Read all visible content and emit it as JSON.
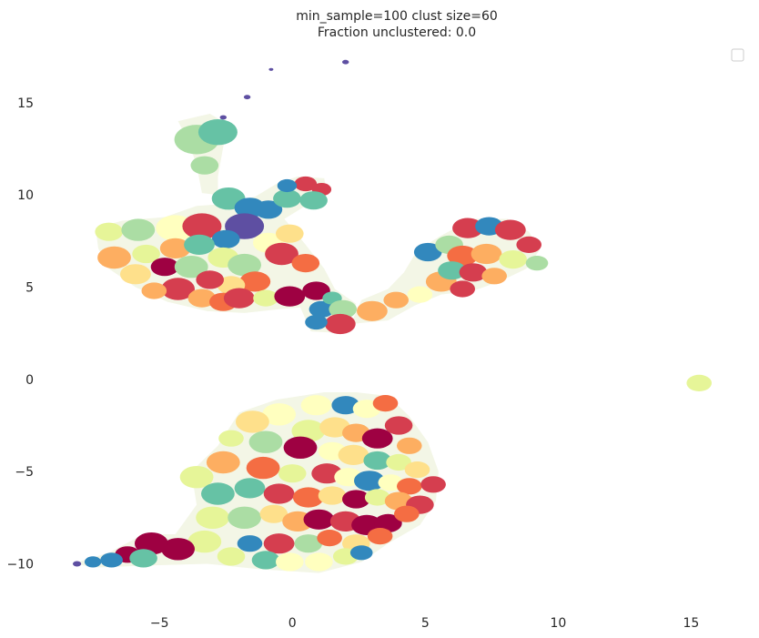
{
  "chart_data": {
    "type": "scatter",
    "title_lines": [
      "min_sample=100 clust size=60",
      "Fraction unclustered: 0.0"
    ],
    "xlabel": "",
    "ylabel": "",
    "xlim": [
      -8.6,
      16.8
    ],
    "ylim": [
      -12.0,
      18.0
    ],
    "x_ticks": [
      -5,
      0,
      5,
      10,
      15
    ],
    "x_tick_labels": [
      "−5",
      "0",
      "5",
      "10",
      "15"
    ],
    "y_ticks": [
      -10,
      -5,
      0,
      5,
      10,
      15
    ],
    "y_tick_labels": [
      "−10",
      "−5",
      "0",
      "5",
      "10",
      "15"
    ],
    "grid": false,
    "legend": "top-right, empty",
    "colors": [
      "#9e0142",
      "#d53e4f",
      "#f46d43",
      "#fdae61",
      "#fee08b",
      "#ffffbf",
      "#e6f598",
      "#abdda4",
      "#66c2a5",
      "#3288bd",
      "#5e4fa2"
    ],
    "clusters": [
      {
        "x": 2.0,
        "y": 17.2,
        "r": 0.12,
        "c": 10
      },
      {
        "x": -0.8,
        "y": 16.8,
        "r": 0.08,
        "c": 10
      },
      {
        "x": -1.7,
        "y": 15.3,
        "r": 0.12,
        "c": 10
      },
      {
        "x": -2.6,
        "y": 14.2,
        "r": 0.12,
        "c": 10
      },
      {
        "x": -3.6,
        "y": 13.0,
        "r": 0.8,
        "c": 7
      },
      {
        "x": -2.8,
        "y": 13.4,
        "r": 0.7,
        "c": 8
      },
      {
        "x": -3.3,
        "y": 11.6,
        "r": 0.5,
        "c": 7
      },
      {
        "x": -2.4,
        "y": 9.8,
        "r": 0.6,
        "c": 8
      },
      {
        "x": -1.6,
        "y": 9.3,
        "r": 0.55,
        "c": 9
      },
      {
        "x": -1.8,
        "y": 8.3,
        "r": 0.7,
        "c": 10
      },
      {
        "x": -0.9,
        "y": 9.2,
        "r": 0.5,
        "c": 9
      },
      {
        "x": -0.2,
        "y": 9.8,
        "r": 0.5,
        "c": 8
      },
      {
        "x": 0.5,
        "y": 10.6,
        "r": 0.4,
        "c": 1
      },
      {
        "x": 1.1,
        "y": 10.3,
        "r": 0.35,
        "c": 1
      },
      {
        "x": 0.8,
        "y": 9.7,
        "r": 0.5,
        "c": 8
      },
      {
        "x": -0.2,
        "y": 10.5,
        "r": 0.35,
        "c": 9
      },
      {
        "x": -6.9,
        "y": 8.0,
        "r": 0.5,
        "c": 6
      },
      {
        "x": -5.8,
        "y": 8.1,
        "r": 0.6,
        "c": 7
      },
      {
        "x": -4.4,
        "y": 8.2,
        "r": 0.7,
        "c": 5
      },
      {
        "x": -3.4,
        "y": 8.3,
        "r": 0.7,
        "c": 1
      },
      {
        "x": -2.5,
        "y": 7.6,
        "r": 0.5,
        "c": 9
      },
      {
        "x": -6.7,
        "y": 6.6,
        "r": 0.6,
        "c": 3
      },
      {
        "x": -5.9,
        "y": 5.7,
        "r": 0.55,
        "c": 4
      },
      {
        "x": -5.5,
        "y": 6.8,
        "r": 0.5,
        "c": 6
      },
      {
        "x": -4.8,
        "y": 6.1,
        "r": 0.5,
        "c": 0
      },
      {
        "x": -4.4,
        "y": 7.1,
        "r": 0.55,
        "c": 3
      },
      {
        "x": -3.8,
        "y": 6.1,
        "r": 0.6,
        "c": 7
      },
      {
        "x": -3.5,
        "y": 7.3,
        "r": 0.55,
        "c": 8
      },
      {
        "x": -2.6,
        "y": 6.6,
        "r": 0.55,
        "c": 6
      },
      {
        "x": -1.8,
        "y": 6.2,
        "r": 0.6,
        "c": 7
      },
      {
        "x": -0.9,
        "y": 7.4,
        "r": 0.55,
        "c": 5
      },
      {
        "x": -0.4,
        "y": 6.8,
        "r": 0.6,
        "c": 1
      },
      {
        "x": -0.1,
        "y": 7.9,
        "r": 0.5,
        "c": 4
      },
      {
        "x": 0.5,
        "y": 6.3,
        "r": 0.5,
        "c": 2
      },
      {
        "x": -1.4,
        "y": 5.3,
        "r": 0.55,
        "c": 2
      },
      {
        "x": -2.3,
        "y": 5.1,
        "r": 0.5,
        "c": 4
      },
      {
        "x": -3.1,
        "y": 5.4,
        "r": 0.5,
        "c": 1
      },
      {
        "x": -4.3,
        "y": 4.9,
        "r": 0.6,
        "c": 1
      },
      {
        "x": -5.2,
        "y": 4.8,
        "r": 0.45,
        "c": 3
      },
      {
        "x": -3.4,
        "y": 4.4,
        "r": 0.5,
        "c": 3
      },
      {
        "x": -2.6,
        "y": 4.2,
        "r": 0.5,
        "c": 2
      },
      {
        "x": -2.0,
        "y": 4.4,
        "r": 0.55,
        "c": 1
      },
      {
        "x": -1.0,
        "y": 4.4,
        "r": 0.45,
        "c": 6
      },
      {
        "x": -0.1,
        "y": 4.5,
        "r": 0.55,
        "c": 0
      },
      {
        "x": 0.9,
        "y": 4.8,
        "r": 0.5,
        "c": 0
      },
      {
        "x": 1.1,
        "y": 3.8,
        "r": 0.45,
        "c": 9
      },
      {
        "x": 1.5,
        "y": 4.4,
        "r": 0.35,
        "c": 8
      },
      {
        "x": 1.9,
        "y": 3.8,
        "r": 0.5,
        "c": 7
      },
      {
        "x": 1.8,
        "y": 3.0,
        "r": 0.55,
        "c": 1
      },
      {
        "x": 0.9,
        "y": 3.1,
        "r": 0.4,
        "c": 9
      },
      {
        "x": 3.0,
        "y": 3.7,
        "r": 0.55,
        "c": 3
      },
      {
        "x": 3.9,
        "y": 4.3,
        "r": 0.45,
        "c": 3
      },
      {
        "x": 4.8,
        "y": 4.6,
        "r": 0.45,
        "c": 5
      },
      {
        "x": 5.6,
        "y": 5.3,
        "r": 0.55,
        "c": 3
      },
      {
        "x": 5.1,
        "y": 6.9,
        "r": 0.5,
        "c": 9
      },
      {
        "x": 5.9,
        "y": 7.3,
        "r": 0.5,
        "c": 7
      },
      {
        "x": 6.6,
        "y": 8.2,
        "r": 0.55,
        "c": 1
      },
      {
        "x": 7.4,
        "y": 8.3,
        "r": 0.5,
        "c": 9
      },
      {
        "x": 8.2,
        "y": 8.1,
        "r": 0.55,
        "c": 1
      },
      {
        "x": 6.4,
        "y": 6.7,
        "r": 0.55,
        "c": 2
      },
      {
        "x": 7.3,
        "y": 6.8,
        "r": 0.55,
        "c": 3
      },
      {
        "x": 6.0,
        "y": 5.9,
        "r": 0.5,
        "c": 8
      },
      {
        "x": 6.8,
        "y": 5.8,
        "r": 0.5,
        "c": 1
      },
      {
        "x": 7.6,
        "y": 5.6,
        "r": 0.45,
        "c": 3
      },
      {
        "x": 8.3,
        "y": 6.5,
        "r": 0.5,
        "c": 6
      },
      {
        "x": 8.9,
        "y": 7.3,
        "r": 0.45,
        "c": 1
      },
      {
        "x": 9.2,
        "y": 6.3,
        "r": 0.4,
        "c": 7
      },
      {
        "x": 6.4,
        "y": 4.9,
        "r": 0.45,
        "c": 1
      },
      {
        "x": 15.3,
        "y": -0.2,
        "r": 0.45,
        "c": 6
      },
      {
        "x": 2.0,
        "y": -1.4,
        "r": 0.5,
        "c": 9
      },
      {
        "x": 2.8,
        "y": -1.6,
        "r": 0.5,
        "c": 5
      },
      {
        "x": 3.5,
        "y": -1.3,
        "r": 0.45,
        "c": 2
      },
      {
        "x": 0.9,
        "y": -1.4,
        "r": 0.55,
        "c": 5
      },
      {
        "x": -0.5,
        "y": -1.9,
        "r": 0.6,
        "c": 5
      },
      {
        "x": -1.5,
        "y": -2.3,
        "r": 0.6,
        "c": 4
      },
      {
        "x": 0.6,
        "y": -2.8,
        "r": 0.6,
        "c": 6
      },
      {
        "x": 1.6,
        "y": -2.6,
        "r": 0.55,
        "c": 4
      },
      {
        "x": 2.4,
        "y": -2.9,
        "r": 0.5,
        "c": 3
      },
      {
        "x": 3.2,
        "y": -3.2,
        "r": 0.55,
        "c": 0
      },
      {
        "x": 4.0,
        "y": -2.5,
        "r": 0.5,
        "c": 1
      },
      {
        "x": 4.4,
        "y": -3.6,
        "r": 0.45,
        "c": 3
      },
      {
        "x": -2.3,
        "y": -3.2,
        "r": 0.45,
        "c": 6
      },
      {
        "x": -1.0,
        "y": -3.4,
        "r": 0.6,
        "c": 7
      },
      {
        "x": 0.3,
        "y": -3.7,
        "r": 0.6,
        "c": 0
      },
      {
        "x": 1.5,
        "y": -3.9,
        "r": 0.5,
        "c": 5
      },
      {
        "x": 2.3,
        "y": -4.1,
        "r": 0.55,
        "c": 4
      },
      {
        "x": 3.2,
        "y": -4.4,
        "r": 0.5,
        "c": 8
      },
      {
        "x": 4.0,
        "y": -4.5,
        "r": 0.45,
        "c": 6
      },
      {
        "x": 4.7,
        "y": -4.9,
        "r": 0.45,
        "c": 4
      },
      {
        "x": -2.6,
        "y": -4.5,
        "r": 0.6,
        "c": 3
      },
      {
        "x": -1.1,
        "y": -4.8,
        "r": 0.6,
        "c": 2
      },
      {
        "x": 0.0,
        "y": -5.1,
        "r": 0.5,
        "c": 6
      },
      {
        "x": 1.3,
        "y": -5.1,
        "r": 0.55,
        "c": 1
      },
      {
        "x": 2.1,
        "y": -5.3,
        "r": 0.5,
        "c": 5
      },
      {
        "x": 2.9,
        "y": -5.5,
        "r": 0.55,
        "c": 9
      },
      {
        "x": 3.7,
        "y": -5.6,
        "r": 0.45,
        "c": 5
      },
      {
        "x": 4.4,
        "y": -5.8,
        "r": 0.45,
        "c": 2
      },
      {
        "x": 5.3,
        "y": -5.7,
        "r": 0.45,
        "c": 1
      },
      {
        "x": -3.6,
        "y": -5.3,
        "r": 0.6,
        "c": 6
      },
      {
        "x": -2.8,
        "y": -6.2,
        "r": 0.6,
        "c": 8
      },
      {
        "x": -1.6,
        "y": -5.9,
        "r": 0.55,
        "c": 8
      },
      {
        "x": -0.5,
        "y": -6.2,
        "r": 0.55,
        "c": 1
      },
      {
        "x": 0.6,
        "y": -6.4,
        "r": 0.55,
        "c": 2
      },
      {
        "x": 1.5,
        "y": -6.3,
        "r": 0.5,
        "c": 4
      },
      {
        "x": 2.4,
        "y": -6.5,
        "r": 0.5,
        "c": 0
      },
      {
        "x": 3.2,
        "y": -6.4,
        "r": 0.45,
        "c": 6
      },
      {
        "x": 4.0,
        "y": -6.6,
        "r": 0.5,
        "c": 3
      },
      {
        "x": 4.8,
        "y": -6.8,
        "r": 0.5,
        "c": 1
      },
      {
        "x": -3.0,
        "y": -7.5,
        "r": 0.6,
        "c": 6
      },
      {
        "x": -1.8,
        "y": -7.5,
        "r": 0.6,
        "c": 7
      },
      {
        "x": -0.7,
        "y": -7.3,
        "r": 0.5,
        "c": 4
      },
      {
        "x": 0.2,
        "y": -7.7,
        "r": 0.55,
        "c": 3
      },
      {
        "x": 1.0,
        "y": -7.6,
        "r": 0.55,
        "c": 0
      },
      {
        "x": 2.0,
        "y": -7.7,
        "r": 0.55,
        "c": 1
      },
      {
        "x": 2.8,
        "y": -7.9,
        "r": 0.55,
        "c": 0
      },
      {
        "x": 3.6,
        "y": -7.8,
        "r": 0.5,
        "c": 0
      },
      {
        "x": 4.3,
        "y": -7.3,
        "r": 0.45,
        "c": 2
      },
      {
        "x": 3.3,
        "y": -8.5,
        "r": 0.45,
        "c": 2
      },
      {
        "x": -3.3,
        "y": -8.8,
        "r": 0.6,
        "c": 6
      },
      {
        "x": -1.6,
        "y": -8.9,
        "r": 0.45,
        "c": 9
      },
      {
        "x": -0.5,
        "y": -8.9,
        "r": 0.55,
        "c": 1
      },
      {
        "x": 0.6,
        "y": -8.9,
        "r": 0.5,
        "c": 7
      },
      {
        "x": 1.4,
        "y": -8.6,
        "r": 0.45,
        "c": 2
      },
      {
        "x": 2.4,
        "y": -8.9,
        "r": 0.5,
        "c": 4
      },
      {
        "x": 2.0,
        "y": -9.6,
        "r": 0.45,
        "c": 6
      },
      {
        "x": 2.6,
        "y": -9.4,
        "r": 0.4,
        "c": 9
      },
      {
        "x": -1.0,
        "y": -9.8,
        "r": 0.5,
        "c": 8
      },
      {
        "x": -0.1,
        "y": -9.9,
        "r": 0.5,
        "c": 5
      },
      {
        "x": 1.0,
        "y": -9.9,
        "r": 0.5,
        "c": 5
      },
      {
        "x": -2.3,
        "y": -9.6,
        "r": 0.5,
        "c": 6
      },
      {
        "x": -4.3,
        "y": -9.2,
        "r": 0.6,
        "c": 0
      },
      {
        "x": -5.3,
        "y": -8.9,
        "r": 0.6,
        "c": 0
      },
      {
        "x": -6.2,
        "y": -9.5,
        "r": 0.45,
        "c": 0
      },
      {
        "x": -5.6,
        "y": -9.7,
        "r": 0.5,
        "c": 8
      },
      {
        "x": -6.8,
        "y": -9.8,
        "r": 0.4,
        "c": 9
      },
      {
        "x": -7.5,
        "y": -9.9,
        "r": 0.3,
        "c": 9
      },
      {
        "x": -8.1,
        "y": -10.0,
        "r": 0.15,
        "c": 10
      }
    ]
  }
}
